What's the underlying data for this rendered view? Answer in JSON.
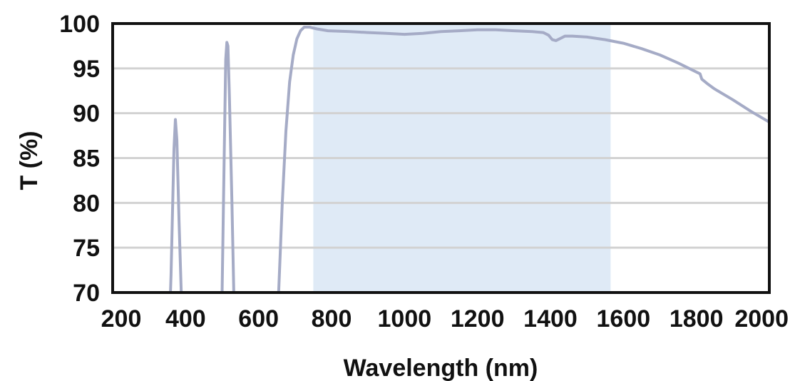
{
  "chart_data": {
    "type": "line",
    "title": "",
    "xlabel": "Wavelength (nm)",
    "ylabel": "T (%)",
    "xlim": [
      200,
      2000
    ],
    "ylim": [
      70,
      100
    ],
    "x_ticks": [
      200,
      400,
      600,
      800,
      1000,
      1200,
      1400,
      1600,
      1800,
      2000
    ],
    "y_ticks": [
      70,
      75,
      80,
      85,
      90,
      95,
      100
    ],
    "grid": "horizontal",
    "legend": "none",
    "highlight_band": {
      "x_start": 750,
      "x_end": 1565,
      "color": "#dfeaf6"
    },
    "series": [
      {
        "color": "#a5abc6",
        "segments": [
          [
            [
              352,
              62
            ],
            [
              360,
              72
            ],
            [
              368,
              86
            ],
            [
              372,
              89.3
            ],
            [
              376,
              87
            ],
            [
              382,
              78
            ],
            [
              388,
              70
            ],
            [
              391,
              66
            ]
          ],
          [
            [
              494,
              62
            ],
            [
              500,
              70
            ],
            [
              506,
              86
            ],
            [
              510,
              96
            ],
            [
              513,
              97.9
            ],
            [
              516,
              97.5
            ],
            [
              520,
              92
            ],
            [
              527,
              80
            ],
            [
              532,
              70
            ],
            [
              536,
              62
            ]
          ],
          [
            [
              648,
              62
            ],
            [
              655,
              70
            ],
            [
              665,
              80
            ],
            [
              675,
              88
            ],
            [
              685,
              93.5
            ],
            [
              695,
              96.5
            ],
            [
              705,
              98.3
            ],
            [
              715,
              99.2
            ],
            [
              725,
              99.6
            ],
            [
              740,
              99.6
            ],
            [
              760,
              99.4
            ],
            [
              790,
              99.2
            ],
            [
              850,
              99.1
            ],
            [
              900,
              99
            ],
            [
              950,
              98.9
            ],
            [
              1000,
              98.8
            ],
            [
              1050,
              98.9
            ],
            [
              1100,
              99.1
            ],
            [
              1150,
              99.2
            ],
            [
              1200,
              99.3
            ],
            [
              1250,
              99.3
            ],
            [
              1300,
              99.2
            ],
            [
              1350,
              99.1
            ],
            [
              1380,
              99
            ],
            [
              1395,
              98.7
            ],
            [
              1405,
              98.2
            ],
            [
              1415,
              98.1
            ],
            [
              1425,
              98.3
            ],
            [
              1440,
              98.6
            ],
            [
              1460,
              98.6
            ],
            [
              1500,
              98.5
            ],
            [
              1550,
              98.2
            ],
            [
              1600,
              97.8
            ],
            [
              1650,
              97.2
            ],
            [
              1700,
              96.5
            ],
            [
              1750,
              95.6
            ],
            [
              1800,
              94.6
            ],
            [
              1810,
              94.4
            ],
            [
              1815,
              93.8
            ],
            [
              1830,
              93.3
            ],
            [
              1850,
              92.7
            ],
            [
              1900,
              91.5
            ],
            [
              1950,
              90.2
            ],
            [
              2000,
              89
            ]
          ]
        ]
      }
    ]
  }
}
